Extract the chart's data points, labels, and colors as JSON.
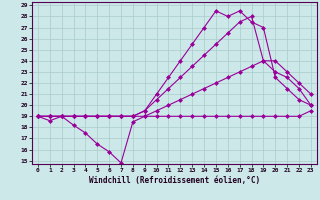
{
  "xlabel": "Windchill (Refroidissement éolien,°C)",
  "background_color": "#cce8e8",
  "grid_color": "#aacccc",
  "line_color": "#990099",
  "xmin": 0,
  "xmax": 23,
  "ymin": 15,
  "ymax": 29,
  "line1": [
    19,
    18.6,
    19.0,
    18.2,
    17.5,
    16.5,
    15.8,
    14.8,
    18.5,
    19.0,
    19.0,
    19.0,
    19.0,
    19.0,
    19.0,
    19.0,
    19.0,
    19.0,
    19.0,
    19.0,
    19.0,
    19.0,
    19.0,
    19.5
  ],
  "line2": [
    19,
    19,
    19,
    19,
    19,
    19,
    19,
    19,
    19,
    19,
    19.5,
    20,
    20.5,
    21,
    21.5,
    22,
    22.5,
    23,
    23.5,
    24,
    24,
    23,
    22,
    21
  ],
  "line3": [
    19,
    19,
    19,
    19,
    19,
    19,
    19,
    19,
    19,
    19.5,
    20.5,
    21.5,
    22.5,
    23.5,
    24.5,
    25.5,
    26.5,
    27.5,
    28.0,
    24,
    23,
    22.5,
    21.5,
    20
  ],
  "line4": [
    19,
    19,
    19,
    19,
    19,
    19,
    19,
    19,
    19,
    19.5,
    21,
    22.5,
    24,
    25.5,
    27,
    28.5,
    28.0,
    28.5,
    27.5,
    27,
    22.5,
    21.5,
    20.5,
    20
  ],
  "marker_size": 2.5
}
